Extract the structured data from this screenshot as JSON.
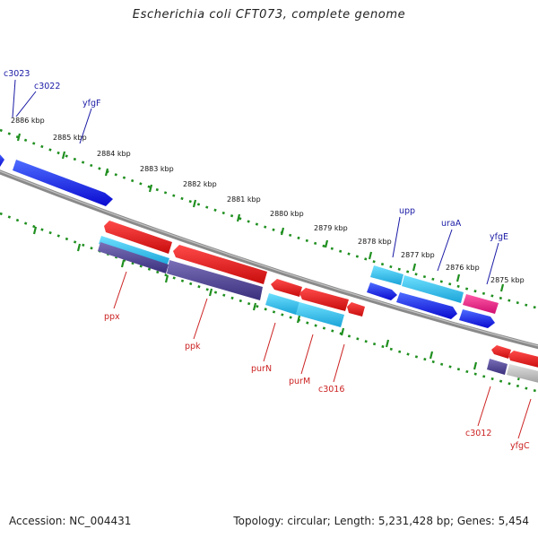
{
  "title": "Escherichia coli CFT073, complete genome",
  "footer": {
    "accession": "Accession: NC_004431",
    "summary": "Topology: circular; Length: 5,231,428 bp; Genes: 5,454"
  },
  "colors": {
    "backbone": "#8a8a8a",
    "tick_green": "#1f8f1f",
    "fwd_blue": "#1010e0",
    "cyan": "#22b8e8",
    "red": "#e01818",
    "purple": "#4a3f8f",
    "magenta": "#e0207a",
    "grey": "#b8b8b8",
    "top_label": "#1a1aa6",
    "bottom_label": "#cc2222"
  },
  "kbp_labels": [
    "2886 kbp",
    "2885 kbp",
    "2884 kbp",
    "2883 kbp",
    "2882 kbp",
    "2881 kbp",
    "2880 kbp",
    "2879 kbp",
    "2878 kbp",
    "2877 kbp",
    "2876 kbp",
    "2875 kbp"
  ],
  "top_genes": [
    "c3023",
    "c3022",
    "yfgF",
    "upp",
    "uraA",
    "yfgE"
  ],
  "bottom_genes": [
    "ppx",
    "ppk",
    "purN",
    "purM",
    "c3016",
    "c3012",
    "yfgC"
  ]
}
